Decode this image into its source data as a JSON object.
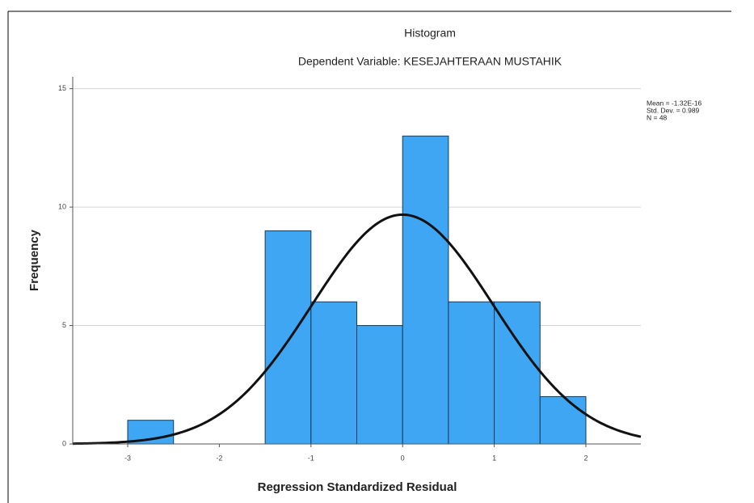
{
  "chart_data": {
    "type": "histogram",
    "title": "Histogram",
    "subtitle": "Dependent Variable: KESEJAHTERAAN MUSTAHIK",
    "x_label": "Regression Standardized Residual",
    "y_label": "Frequency",
    "bins": [
      -3,
      -2.5,
      -2,
      -1.5,
      -1,
      -0.5,
      0,
      0.5,
      1,
      1.5,
      2
    ],
    "values": [
      1,
      0,
      0,
      9,
      6,
      5,
      13,
      6,
      6,
      2
    ],
    "color": "#3ea6f2",
    "curve": {
      "mean": -1.32e-16,
      "std_dev": 0.989,
      "n": 48
    },
    "stats": [
      "Mean = -1.32E-16",
      "Std. Dev. = 0.989",
      "N = 48"
    ],
    "xlim": [
      -3.6,
      2.6
    ],
    "ylim": [
      0,
      15.5
    ],
    "xticks": [
      -3,
      -2,
      -1,
      0,
      1,
      2
    ],
    "yticks": [
      0,
      5,
      10,
      15
    ],
    "grid": true
  }
}
